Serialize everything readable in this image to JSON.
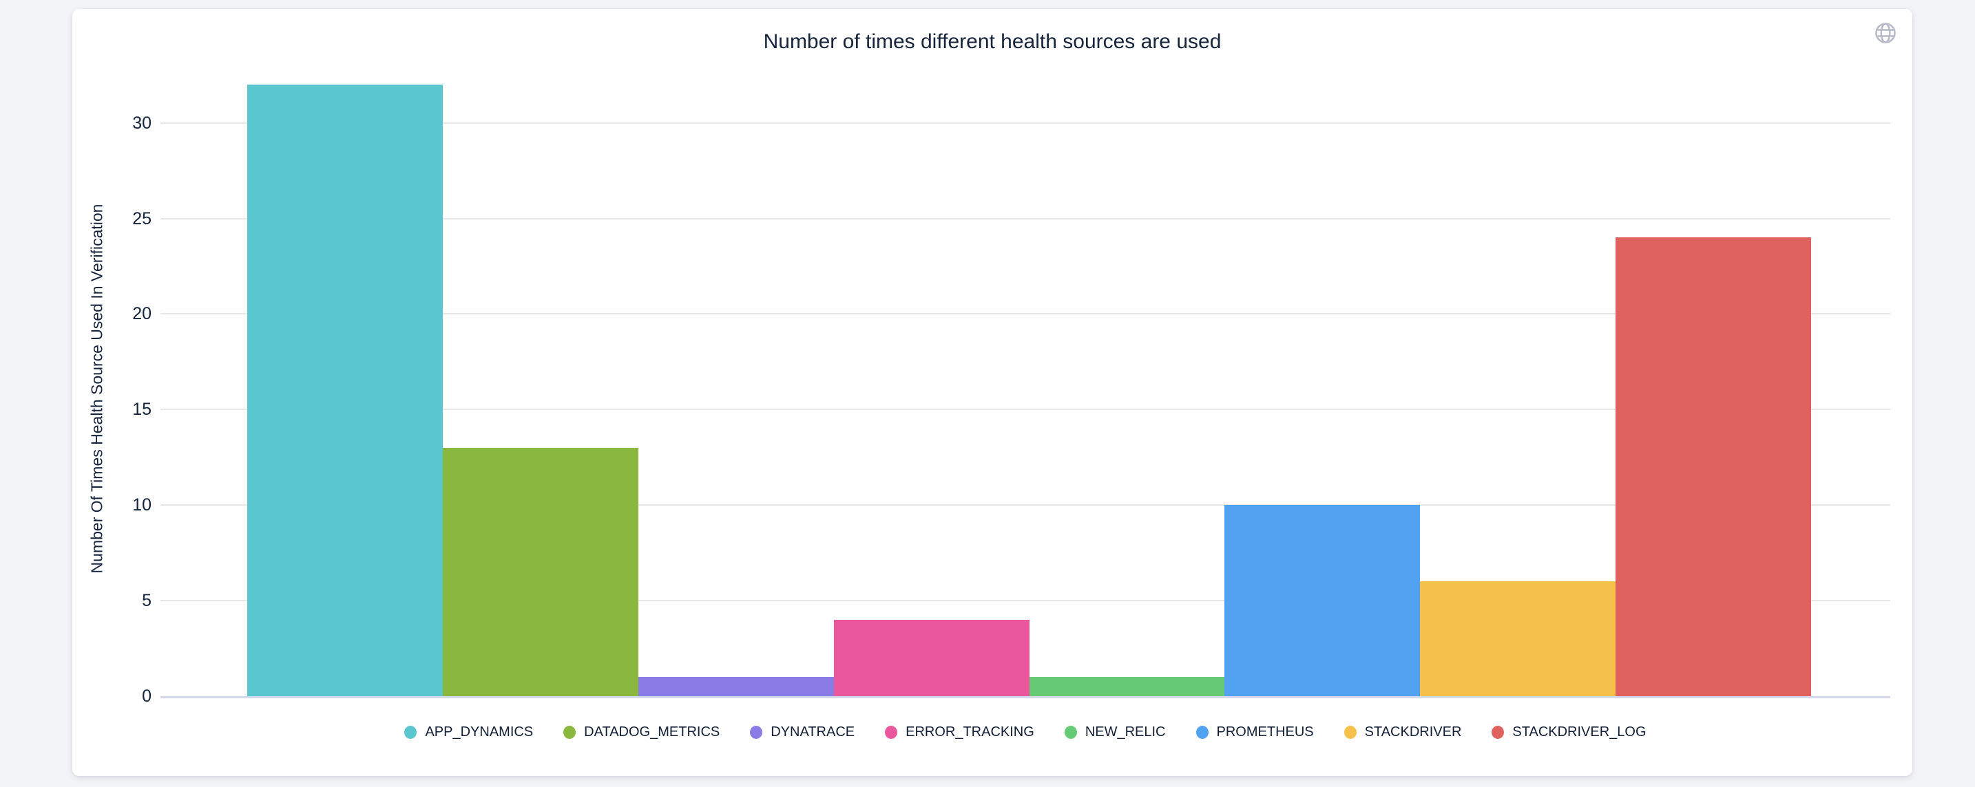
{
  "chart_data": {
    "type": "bar",
    "title": "Number of times different health sources are used",
    "xlabel": "",
    "ylabel": "Number Of Times Health Source Used In Verification",
    "categories": [
      "APP_DYNAMICS",
      "DATADOG_METRICS",
      "DYNATRACE",
      "ERROR_TRACKING",
      "NEW_RELIC",
      "PROMETHEUS",
      "STACKDRIVER",
      "STACKDRIVER_LOG"
    ],
    "values": [
      32,
      13,
      1,
      4,
      1,
      10,
      6,
      24
    ],
    "colors": [
      "#5ac7ce",
      "#8ab83e",
      "#8a7ce7",
      "#ea579c",
      "#67ca75",
      "#51a2f0",
      "#f5c14b",
      "#e0625f"
    ],
    "yticks": [
      0,
      5,
      10,
      15,
      20,
      25,
      30
    ],
    "ylim": [
      0,
      32
    ],
    "grid": true,
    "legend_position": "bottom"
  },
  "icons": {
    "globe_color": "#b7bac7"
  },
  "theme": {
    "page_background": "#f3f4f6",
    "card_background": "#ffffff",
    "title_color": "#16243c",
    "gridline_color": "#e7e7e7",
    "baseline_color": "#d5d9ed"
  }
}
